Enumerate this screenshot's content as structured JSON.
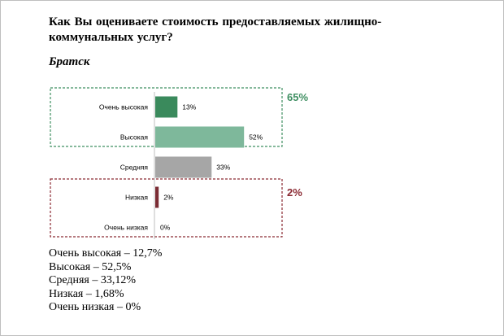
{
  "question": "Как Вы оцениваете стоимость предоставляемых жилищно-коммунальных услуг?",
  "city": "Братск",
  "chart_data": {
    "type": "bar",
    "orientation": "horizontal",
    "categories": [
      "Очень высокая",
      "Высокая",
      "Средняя",
      "Низкая",
      "Очень низкая"
    ],
    "values": [
      13,
      52,
      33,
      2,
      0
    ],
    "value_labels": [
      "13%",
      "52%",
      "33%",
      "2%",
      "0%"
    ],
    "bar_colors": [
      "#3a8a5c",
      "#7eb89b",
      "#a6a6a6",
      "#7b2c34",
      "#a6a6a6"
    ],
    "xlim": [
      0,
      100
    ],
    "groups": [
      {
        "label": "65%",
        "categories": [
          "Очень высокая",
          "Высокая"
        ],
        "color": "#3f8f62"
      },
      {
        "label": "2%",
        "categories": [
          "Низкая",
          "Очень низкая"
        ],
        "color": "#8b2a33"
      }
    ],
    "title": "",
    "xlabel": "",
    "ylabel": ""
  },
  "totals": [
    "Очень высокая – 12,7%",
    "Высокая – 52,5%",
    "Средняя – 33,12%",
    "Низкая – 1,68%",
    "Очень низкая – 0%"
  ]
}
